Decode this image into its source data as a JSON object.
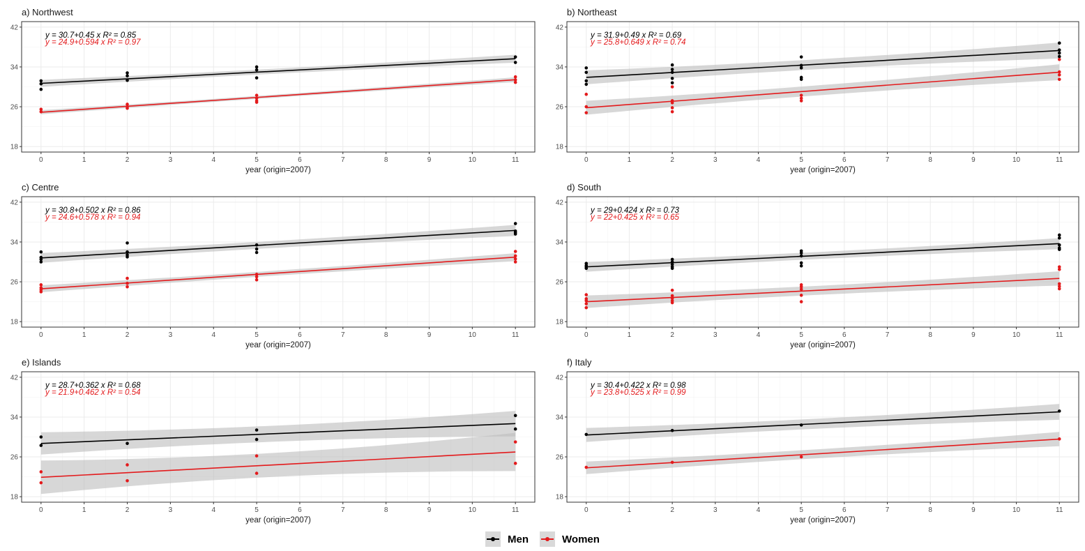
{
  "colors": {
    "men": "#000000",
    "women": "#e31a1c",
    "band": "#bdbdbd",
    "grid": "#ebebeb",
    "frame": "#333333"
  },
  "legend": [
    {
      "key": "men",
      "label": "Men"
    },
    {
      "key": "women",
      "label": "Women"
    }
  ],
  "chart_data": [
    {
      "type": "scatter",
      "title": "a) Northwest",
      "xlabel": "year (origin=2007)",
      "ylabel": "",
      "xlim": [
        0,
        11
      ],
      "ylim": [
        18,
        42
      ],
      "xticks": [
        0,
        1,
        2,
        3,
        4,
        5,
        6,
        7,
        8,
        9,
        10,
        11
      ],
      "yticks": [
        18,
        26,
        34,
        42
      ],
      "series": [
        {
          "name": "Men",
          "key": "men",
          "intercept": 30.7,
          "slope": 0.45,
          "r2": 0.85,
          "equation": "y = 30.7+0.45 x",
          "r2_label": "R² = 0.85",
          "band": 0.5,
          "points": [
            [
              0,
              31.2
            ],
            [
              0,
              30.6
            ],
            [
              0,
              29.5
            ],
            [
              2,
              32.8
            ],
            [
              2,
              32.2
            ],
            [
              2,
              31.3
            ],
            [
              5,
              34.0
            ],
            [
              5,
              33.4
            ],
            [
              5,
              31.8
            ],
            [
              11,
              36.0
            ],
            [
              11,
              34.9
            ]
          ]
        },
        {
          "name": "Women",
          "key": "women",
          "intercept": 24.9,
          "slope": 0.594,
          "r2": 0.97,
          "equation": "y = 24.9+0.594 x",
          "r2_label": "R² = 0.97",
          "band": 0.3,
          "points": [
            [
              0,
              25.5
            ],
            [
              0,
              25.0
            ],
            [
              2,
              26.5
            ],
            [
              2,
              26.0
            ],
            [
              2,
              25.7
            ],
            [
              5,
              28.3
            ],
            [
              5,
              27.7
            ],
            [
              5,
              27.2
            ],
            [
              5,
              26.9
            ],
            [
              11,
              32.0
            ],
            [
              11,
              31.4
            ],
            [
              11,
              30.9
            ]
          ]
        }
      ]
    },
    {
      "type": "scatter",
      "title": "b) Northeast",
      "xlabel": "year (origin=2007)",
      "ylabel": "",
      "xlim": [
        0,
        11
      ],
      "ylim": [
        18,
        42
      ],
      "xticks": [
        0,
        1,
        2,
        3,
        4,
        5,
        6,
        7,
        8,
        9,
        10,
        11
      ],
      "yticks": [
        18,
        26,
        34,
        42
      ],
      "series": [
        {
          "name": "Men",
          "key": "men",
          "intercept": 31.9,
          "slope": 0.49,
          "r2": 0.69,
          "equation": "y = 31.9+0.49 x",
          "r2_label": "R² = 0.69",
          "band": 1.0,
          "points": [
            [
              0,
              33.8
            ],
            [
              0,
              32.9
            ],
            [
              0,
              31.2
            ],
            [
              0,
              30.5
            ],
            [
              2,
              34.4
            ],
            [
              2,
              33.5
            ],
            [
              2,
              32.9
            ],
            [
              2,
              31.7
            ],
            [
              2,
              30.8
            ],
            [
              5,
              36.0
            ],
            [
              5,
              34.3
            ],
            [
              5,
              33.8
            ],
            [
              5,
              31.9
            ],
            [
              5,
              31.5
            ],
            [
              11,
              38.8
            ],
            [
              11,
              37.4
            ],
            [
              11,
              36.8
            ],
            [
              11,
              36.1
            ]
          ]
        },
        {
          "name": "Women",
          "key": "women",
          "intercept": 25.8,
          "slope": 0.649,
          "r2": 0.74,
          "equation": "y = 25.8+0.649 x",
          "r2_label": "R² = 0.74",
          "band": 1.0,
          "points": [
            [
              0,
              28.5
            ],
            [
              0,
              26.0
            ],
            [
              0,
              24.8
            ],
            [
              2,
              30.0
            ],
            [
              2,
              27.2
            ],
            [
              2,
              26.8
            ],
            [
              2,
              25.8
            ],
            [
              2,
              25.0
            ],
            [
              5,
              28.3
            ],
            [
              5,
              27.7
            ],
            [
              5,
              27.2
            ],
            [
              11,
              35.5
            ],
            [
              11,
              33.0
            ],
            [
              11,
              32.4
            ],
            [
              11,
              31.5
            ]
          ]
        }
      ]
    },
    {
      "type": "scatter",
      "title": "c) Centre",
      "xlabel": "year (origin=2007)",
      "ylabel": "",
      "xlim": [
        0,
        11
      ],
      "ylim": [
        18,
        42
      ],
      "xticks": [
        0,
        1,
        2,
        3,
        4,
        5,
        6,
        7,
        8,
        9,
        10,
        11
      ],
      "yticks": [
        18,
        26,
        34,
        42
      ],
      "series": [
        {
          "name": "Men",
          "key": "men",
          "intercept": 30.8,
          "slope": 0.502,
          "r2": 0.86,
          "equation": "y = 30.8+0.502 x",
          "r2_label": "R² = 0.86",
          "band": 0.7,
          "points": [
            [
              0,
              32.0
            ],
            [
              0,
              30.9
            ],
            [
              0,
              30.5
            ],
            [
              0,
              30.0
            ],
            [
              2,
              33.8
            ],
            [
              2,
              32.0
            ],
            [
              2,
              31.4
            ],
            [
              2,
              31.0
            ],
            [
              5,
              33.4
            ],
            [
              5,
              32.6
            ],
            [
              5,
              31.9
            ],
            [
              11,
              37.7
            ],
            [
              11,
              36.2
            ],
            [
              11,
              35.9
            ],
            [
              11,
              35.6
            ]
          ]
        },
        {
          "name": "Women",
          "key": "women",
          "intercept": 24.6,
          "slope": 0.578,
          "r2": 0.94,
          "equation": "y = 24.6+0.578 x",
          "r2_label": "R² = 0.94",
          "band": 0.5,
          "points": [
            [
              0,
              25.4
            ],
            [
              0,
              24.8
            ],
            [
              0,
              24.4
            ],
            [
              0,
              24.0
            ],
            [
              2,
              26.7
            ],
            [
              2,
              25.7
            ],
            [
              2,
              25.0
            ],
            [
              5,
              27.5
            ],
            [
              5,
              27.0
            ],
            [
              5,
              26.4
            ],
            [
              11,
              32.1
            ],
            [
              11,
              31.2
            ],
            [
              11,
              30.6
            ],
            [
              11,
              30.0
            ]
          ]
        }
      ]
    },
    {
      "type": "scatter",
      "title": "d) South",
      "xlabel": "year (origin=2007)",
      "ylabel": "",
      "xlim": [
        0,
        11
      ],
      "ylim": [
        18,
        42
      ],
      "xticks": [
        0,
        1,
        2,
        3,
        4,
        5,
        6,
        7,
        8,
        9,
        10,
        11
      ],
      "yticks": [
        18,
        26,
        34,
        42
      ],
      "series": [
        {
          "name": "Men",
          "key": "men",
          "intercept": 29.0,
          "slope": 0.424,
          "r2": 0.73,
          "equation": "y = 29+0.424 x",
          "r2_label": "R² = 0.73",
          "band": 0.7,
          "points": [
            [
              0,
              29.7
            ],
            [
              0,
              29.3
            ],
            [
              0,
              29.0
            ],
            [
              0,
              28.7
            ],
            [
              2,
              30.5
            ],
            [
              2,
              30.0
            ],
            [
              2,
              29.5
            ],
            [
              2,
              29.0
            ],
            [
              2,
              28.7
            ],
            [
              5,
              32.2
            ],
            [
              5,
              31.8
            ],
            [
              5,
              31.2
            ],
            [
              5,
              29.8
            ],
            [
              5,
              29.2
            ],
            [
              11,
              35.4
            ],
            [
              11,
              34.8
            ],
            [
              11,
              33.4
            ],
            [
              11,
              32.8
            ],
            [
              11,
              32.5
            ]
          ]
        },
        {
          "name": "Women",
          "key": "women",
          "intercept": 22.0,
          "slope": 0.425,
          "r2": 0.65,
          "equation": "y = 22+0.425 x",
          "r2_label": "R² = 0.65",
          "band": 0.9,
          "points": [
            [
              0,
              23.4
            ],
            [
              0,
              22.6
            ],
            [
              0,
              22.2
            ],
            [
              0,
              21.6
            ],
            [
              0,
              20.8
            ],
            [
              2,
              24.3
            ],
            [
              2,
              23.2
            ],
            [
              2,
              22.7
            ],
            [
              2,
              22.2
            ],
            [
              2,
              21.8
            ],
            [
              5,
              25.4
            ],
            [
              5,
              25.0
            ],
            [
              5,
              24.5
            ],
            [
              5,
              23.3
            ],
            [
              5,
              22.0
            ],
            [
              11,
              29.0
            ],
            [
              11,
              28.5
            ],
            [
              11,
              25.6
            ],
            [
              11,
              25.1
            ],
            [
              11,
              24.6
            ]
          ]
        }
      ]
    },
    {
      "type": "scatter",
      "title": "e) Islands",
      "xlabel": "year (origin=2007)",
      "ylabel": "",
      "xlim": [
        0,
        11
      ],
      "ylim": [
        18,
        42
      ],
      "xticks": [
        0,
        1,
        2,
        3,
        4,
        5,
        6,
        7,
        8,
        9,
        10,
        11
      ],
      "yticks": [
        18,
        26,
        34,
        42
      ],
      "series": [
        {
          "name": "Men",
          "key": "men",
          "intercept": 28.7,
          "slope": 0.362,
          "r2": 0.68,
          "equation": "y = 28.7+0.362 x",
          "r2_label": "R² = 0.68",
          "band": 1.6,
          "points": [
            [
              0,
              30.0
            ],
            [
              0,
              28.3
            ],
            [
              2,
              28.7
            ],
            [
              5,
              31.4
            ],
            [
              5,
              29.5
            ],
            [
              11,
              34.3
            ],
            [
              11,
              31.6
            ]
          ]
        },
        {
          "name": "Women",
          "key": "women",
          "intercept": 21.9,
          "slope": 0.462,
          "r2": 0.54,
          "equation": "y = 21.9+0.462 x",
          "r2_label": "R² = 0.54",
          "band": 2.4,
          "points": [
            [
              0,
              23.0
            ],
            [
              0,
              20.8
            ],
            [
              2,
              24.4
            ],
            [
              2,
              21.2
            ],
            [
              5,
              26.2
            ],
            [
              5,
              22.7
            ],
            [
              11,
              29.0
            ],
            [
              11,
              24.7
            ]
          ]
        }
      ]
    },
    {
      "type": "scatter",
      "title": "f) Italy",
      "xlabel": "year (origin=2007)",
      "ylabel": "",
      "xlim": [
        0,
        11
      ],
      "ylim": [
        18,
        42
      ],
      "xticks": [
        0,
        1,
        2,
        3,
        4,
        5,
        6,
        7,
        8,
        9,
        10,
        11
      ],
      "yticks": [
        18,
        26,
        34,
        42
      ],
      "series": [
        {
          "name": "Men",
          "key": "men",
          "intercept": 30.4,
          "slope": 0.422,
          "r2": 0.98,
          "equation": "y = 30.4+0.422 x",
          "r2_label": "R² = 0.98",
          "band": 1.0,
          "points": [
            [
              0,
              30.5
            ],
            [
              2,
              31.3
            ],
            [
              5,
              32.4
            ],
            [
              11,
              35.2
            ]
          ]
        },
        {
          "name": "Women",
          "key": "women",
          "intercept": 23.8,
          "slope": 0.525,
          "r2": 0.99,
          "equation": "y = 23.8+0.525 x",
          "r2_label": "R² = 0.99",
          "band": 0.9,
          "points": [
            [
              0,
              23.9
            ],
            [
              2,
              24.9
            ],
            [
              5,
              26.0
            ],
            [
              11,
              29.6
            ]
          ]
        }
      ]
    }
  ]
}
